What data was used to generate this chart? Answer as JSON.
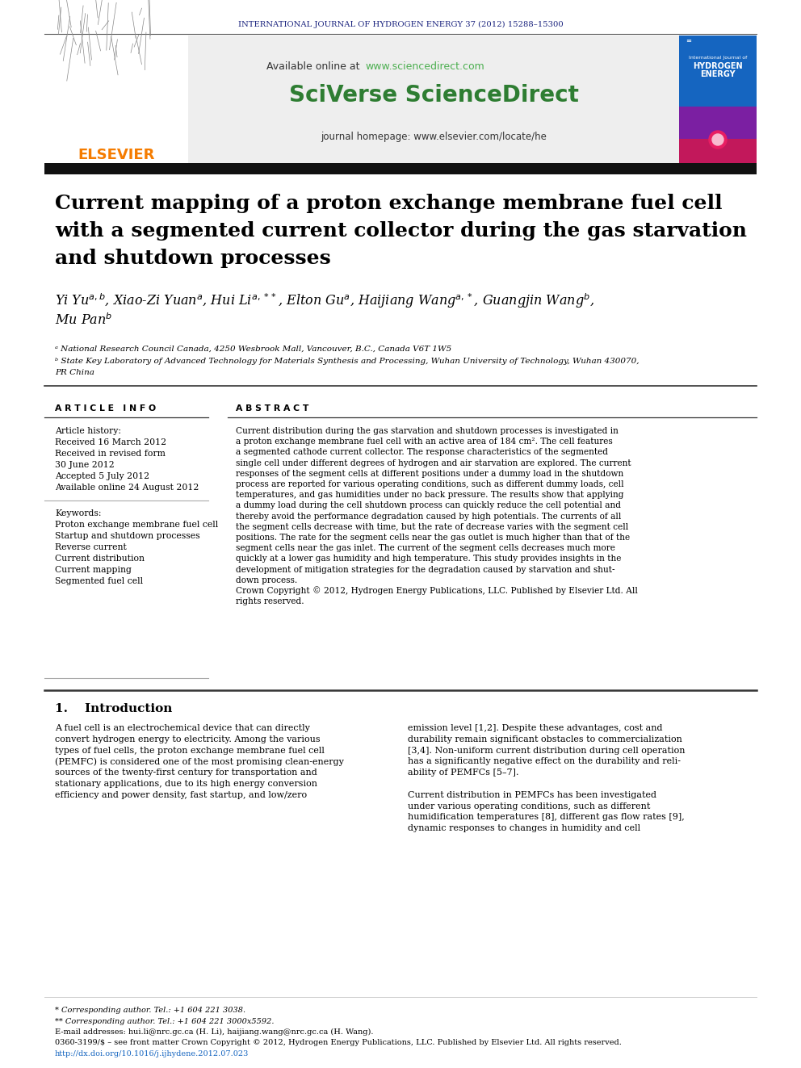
{
  "journal_header": "INTERNATIONAL JOURNAL OF HYDROGEN ENERGY 37 (2012) 15288–15300",
  "journal_header_color": "#1a237e",
  "sciencedirect_url_color": "#4CAF50",
  "sciverse_text": "SciVerse ScienceDirect",
  "sciverse_color": "#2e7d32",
  "journal_homepage": "journal homepage: www.elsevier.com/locate/he",
  "title_line1": "Current mapping of a proton exchange membrane fuel cell",
  "title_line2": "with a segmented current collector during the gas starvation",
  "title_line3": "and shutdown processes",
  "affiliation_a": "ᵃ National Research Council Canada, 4250 Wesbrook Mall, Vancouver, B.C., Canada V6T 1W5",
  "affiliation_b1": "ᵇ State Key Laboratory of Advanced Technology for Materials Synthesis and Processing, Wuhan University of Technology, Wuhan 430070,",
  "affiliation_b2": "PR China",
  "article_info_header": "A R T I C L E   I N F O",
  "abstract_header": "A B S T R A C T",
  "keywords": [
    "Proton exchange membrane fuel cell",
    "Startup and shutdown processes",
    "Reverse current",
    "Current distribution",
    "Current mapping",
    "Segmented fuel cell"
  ],
  "abstract_lines": [
    "Current distribution during the gas starvation and shutdown processes is investigated in",
    "a proton exchange membrane fuel cell with an active area of 184 cm². The cell features",
    "a segmented cathode current collector. The response characteristics of the segmented",
    "single cell under different degrees of hydrogen and air starvation are explored. The current",
    "responses of the segment cells at different positions under a dummy load in the shutdown",
    "process are reported for various operating conditions, such as different dummy loads, cell",
    "temperatures, and gas humidities under no back pressure. The results show that applying",
    "a dummy load during the cell shutdown process can quickly reduce the cell potential and",
    "thereby avoid the performance degradation caused by high potentials. The currents of all",
    "the segment cells decrease with time, but the rate of decrease varies with the segment cell",
    "positions. The rate for the segment cells near the gas outlet is much higher than that of the",
    "segment cells near the gas inlet. The current of the segment cells decreases much more",
    "quickly at a lower gas humidity and high temperature. This study provides insights in the",
    "development of mitigation strategies for the degradation caused by starvation and shut-",
    "down process.",
    "Crown Copyright © 2012, Hydrogen Energy Publications, LLC. Published by Elsevier Ltd. All",
    "rights reserved."
  ],
  "intro_col1_lines": [
    "A fuel cell is an electrochemical device that can directly",
    "convert hydrogen energy to electricity. Among the various",
    "types of fuel cells, the proton exchange membrane fuel cell",
    "(PEMFC) is considered one of the most promising clean-energy",
    "sources of the twenty-first century for transportation and",
    "stationary applications, due to its high energy conversion",
    "efficiency and power density, fast startup, and low/zero"
  ],
  "intro_col2_lines": [
    "emission level [1,2]. Despite these advantages, cost and",
    "durability remain significant obstacles to commercialization",
    "[3,4]. Non-uniform current distribution during cell operation",
    "has a significantly negative effect on the durability and reli-",
    "ability of PEMFCs [5–7].",
    "",
    "Current distribution in PEMFCs has been investigated",
    "under various operating conditions, such as different",
    "humidification temperatures [8], different gas flow rates [9],",
    "dynamic responses to changes in humidity and cell"
  ],
  "footnote_star": "* Corresponding author. Tel.: +1 604 221 3038.",
  "footnote_dstar": "** Corresponding author. Tel.: +1 604 221 3000x5592.",
  "footnote_email": "E-mail addresses: hui.li@nrc.gc.ca (H. Li), haijiang.wang@nrc.gc.ca (H. Wang).",
  "footnote_issn": "0360-3199/$ – see front matter Crown Copyright © 2012, Hydrogen Energy Publications, LLC. Published by Elsevier Ltd. All rights reserved.",
  "footnote_doi": "http://dx.doi.org/10.1016/j.ijhydene.2012.07.023",
  "bg_color": "#ffffff",
  "elsevier_color": "#f57c00"
}
